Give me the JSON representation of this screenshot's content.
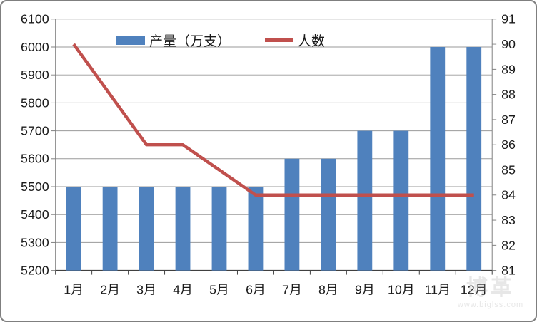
{
  "colors": {
    "bar_fill": "#4F81BD",
    "line_stroke": "#C0504D",
    "gridline": "#9a9a9a",
    "axis_line": "#808080",
    "x_axis_line": "#404040",
    "tick_label": "#1a1a1a",
    "frame_border": "#7f7f7f"
  },
  "legend": {
    "bar_label": "产量（万支）",
    "line_label": "人数"
  },
  "watermark": {
    "logo_text": "博革",
    "url": "www.biglss.com"
  },
  "chart_data": {
    "type": "bar",
    "subtype": "combo-bar-line-dual-axis",
    "title": "",
    "xlabel": "",
    "ylabel": "",
    "grid": true,
    "legend_position": "top-center-inside",
    "categories": [
      "1月",
      "2月",
      "3月",
      "4月",
      "5月",
      "6月",
      "7月",
      "8月",
      "9月",
      "10月",
      "11月",
      "12月"
    ],
    "series": [
      {
        "name": "产量（万支）",
        "type": "bar",
        "axis": "left",
        "color": "#4F81BD",
        "values": [
          5500,
          5500,
          5500,
          5500,
          5500,
          5500,
          5600,
          5600,
          5700,
          5700,
          6000,
          6000
        ]
      },
      {
        "name": "人数",
        "type": "line",
        "axis": "right",
        "color": "#C0504D",
        "values": [
          90,
          88,
          86,
          86,
          85,
          84,
          84,
          84,
          84,
          84,
          84,
          84
        ]
      }
    ],
    "left_axis": {
      "min": 5200,
      "max": 6100,
      "step": 100,
      "ticks": [
        6100,
        6000,
        5900,
        5800,
        5700,
        5600,
        5500,
        5400,
        5300,
        5200
      ]
    },
    "right_axis": {
      "min": 81,
      "max": 91,
      "step": 1,
      "ticks": [
        91,
        90,
        89,
        88,
        87,
        86,
        85,
        84,
        83,
        82,
        81
      ]
    }
  }
}
